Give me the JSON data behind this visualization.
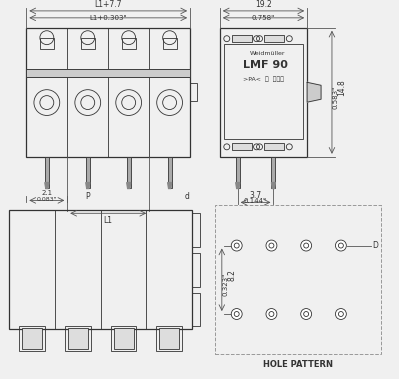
{
  "bg_color": "#f0f0f0",
  "line_color": "#555555",
  "dark_line": "#333333",
  "title_text": "LMF 90",
  "brand_text": "Weidmüller",
  "dim_L1_7": "L1+7.7",
  "dim_L1_303": "L1+0.303\"",
  "dim_19_2": "19.2",
  "dim_0758": "0.758\"",
  "dim_14_8": "14.8",
  "dim_0583": "0.583\"",
  "dim_2_1": "2.1",
  "dim_083": "0.083\"",
  "dim_P": "P",
  "dim_d": "d",
  "dim_L1": "L1",
  "dim_3_7": "3.7",
  "dim_0144": "0.144\"",
  "dim_8_2": "8.2",
  "dim_0323": "0.323\"",
  "hole_pattern": "HOLE PATTERN",
  "num_poles": 4
}
